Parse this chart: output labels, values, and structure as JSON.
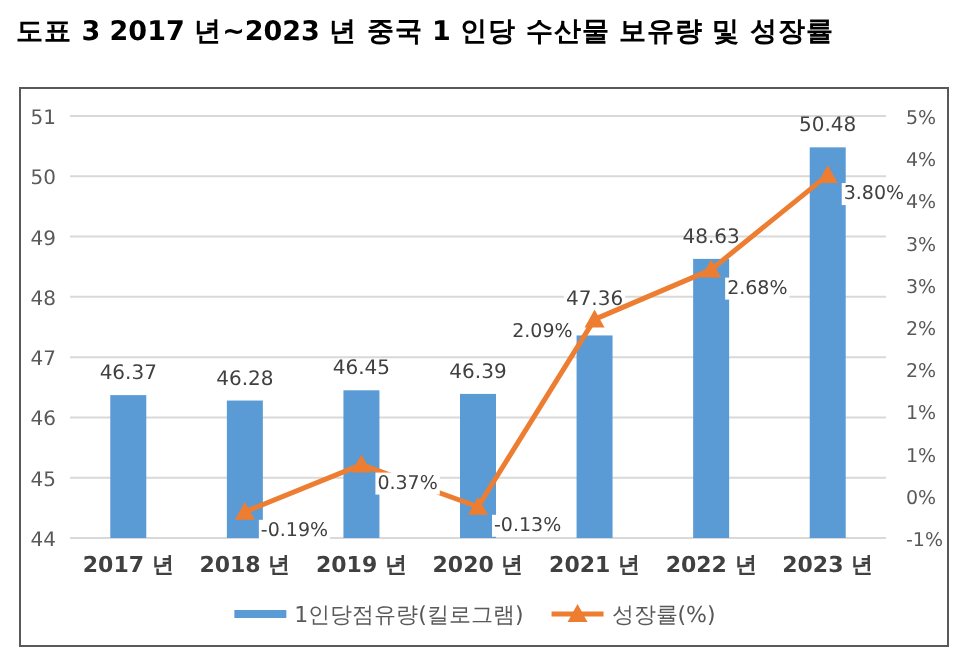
{
  "chart_data": {
    "type": "bar",
    "title": "도표 3   2017 년~2023 년 중국 1 인당 수산물 보유량 및 성장률",
    "categories": [
      "2017 년",
      "2018 년",
      "2019 년",
      "2020 년",
      "2021 년",
      "2022 년",
      "2023 년"
    ],
    "series": [
      {
        "name": "1인당점유량(킬로그램)",
        "color": "#5b9bd5",
        "values": [
          46.37,
          46.28,
          46.45,
          46.39,
          47.36,
          48.63,
          50.48
        ],
        "data_labels": true
      },
      {
        "name": "성장률(%)",
        "type": "line",
        "axis": "y2",
        "color": "#ed7d31",
        "marker": "triangle",
        "values": [
          null,
          -0.19,
          0.37,
          -0.13,
          2.09,
          2.68,
          3.8
        ],
        "value_labels": [
          null,
          "-0.19%",
          "0.37%",
          "-0.13%",
          "2.09%",
          "2.68%",
          "3.80%"
        ]
      }
    ],
    "ylim": [
      44,
      51
    ],
    "yticks": [
      44,
      45,
      46,
      47,
      48,
      49,
      50,
      51
    ],
    "y2lim": [
      -0.5,
      4.5
    ],
    "y2ticks": [
      {
        "value": -0.5,
        "label": "-1%"
      },
      {
        "value": 0,
        "label": "0%"
      },
      {
        "value": 0.5,
        "label": "1%"
      },
      {
        "value": 1,
        "label": "1%"
      },
      {
        "value": 1.5,
        "label": "2%"
      },
      {
        "value": 2,
        "label": "2%"
      },
      {
        "value": 2.5,
        "label": "3%"
      },
      {
        "value": 3,
        "label": "3%"
      },
      {
        "value": 3.5,
        "label": "4%"
      },
      {
        "value": 4,
        "label": "4%"
      },
      {
        "value": 4.5,
        "label": "5%"
      }
    ],
    "grid": "y",
    "legend": "bottom"
  }
}
